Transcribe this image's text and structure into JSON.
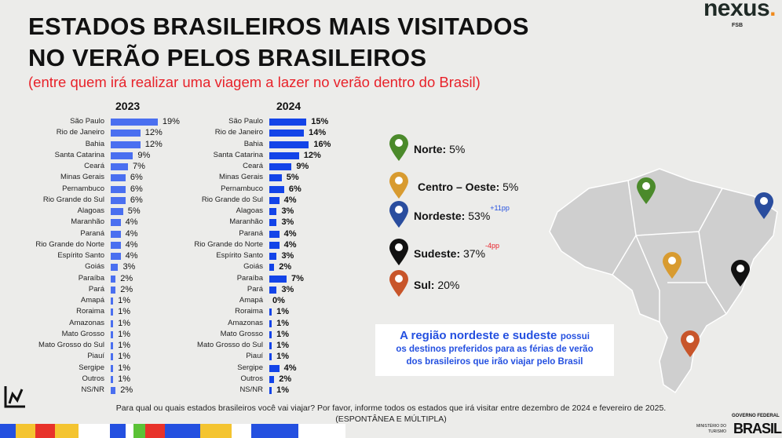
{
  "header": {
    "title_line1": "ESTADOS BRASILEIROS MAIS VISITADOS",
    "title_line2": "NO VERÃO PELOS BRASILEIROS",
    "subtitle": "(entre quem irá realizar uma viagem a lazer no verão dentro do Brasil)"
  },
  "logo": {
    "name": "nexus",
    "dot": ".",
    "sub": "FSB"
  },
  "chart_data": {
    "type": "bar",
    "orientation": "horizontal",
    "categories": [
      "São Paulo",
      "Rio de Janeiro",
      "Bahia",
      "Santa Catarina",
      "Ceará",
      "Minas Gerais",
      "Pernambuco",
      "Rio Grande do Sul",
      "Alagoas",
      "Maranhão",
      "Paraná",
      "Rio Grande do Norte",
      "Espírito Santo",
      "Goiás",
      "Paraíba",
      "Pará",
      "Amapá",
      "Roraima",
      "Amazonas",
      "Mato Grosso",
      "Mato Grosso do Sul",
      "Piauí",
      "Sergipe",
      "Outros",
      "NS/NR"
    ],
    "series": [
      {
        "name": "2023",
        "color": "#4a6ff0",
        "values": [
          19,
          12,
          12,
          9,
          7,
          6,
          6,
          6,
          5,
          4,
          4,
          4,
          4,
          3,
          2,
          2,
          1,
          1,
          1,
          1,
          1,
          1,
          1,
          1,
          2
        ]
      },
      {
        "name": "2024",
        "color": "#1344e8",
        "values": [
          15,
          14,
          16,
          12,
          9,
          5,
          6,
          4,
          3,
          3,
          4,
          4,
          3,
          2,
          7,
          3,
          0,
          1,
          1,
          1,
          1,
          1,
          4,
          2,
          1
        ]
      }
    ],
    "unit": "%"
  },
  "regions": [
    {
      "name": "Norte:",
      "value": "5%",
      "change": "",
      "color": "#4b8a2b"
    },
    {
      "name": "Centro – Oeste:",
      "value": "5%",
      "change": "",
      "color": "#d89b30"
    },
    {
      "name": "Nordeste:",
      "value": "53%",
      "change": "+11pp",
      "color": "#2a4d9e"
    },
    {
      "name": "Sudeste:",
      "value": "37%",
      "change": "-4pp",
      "color": "#111111"
    },
    {
      "name": "Sul:",
      "value": "20%",
      "change": "",
      "color": "#c8552a"
    }
  ],
  "callout": {
    "bold": "A região nordeste e sudeste",
    "rest": "possui",
    "line2": "os destinos preferidos para as férias de verão",
    "line3": "dos brasileiros que irão viajar pelo Brasil"
  },
  "footer": {
    "question": "Para qual ou quais estados brasileiros você vai viajar? Por favor, informe todos os estados que irá visitar entre dezembro de 2024 e fevereiro de 2025.",
    "note": "(ESPONTÂNEA E MÚLTIPLA)",
    "gov": "GOVERNO FEDERAL",
    "brasil": "BRASIL",
    "ministry": "MINISTÉRIO DO TURISMO"
  }
}
